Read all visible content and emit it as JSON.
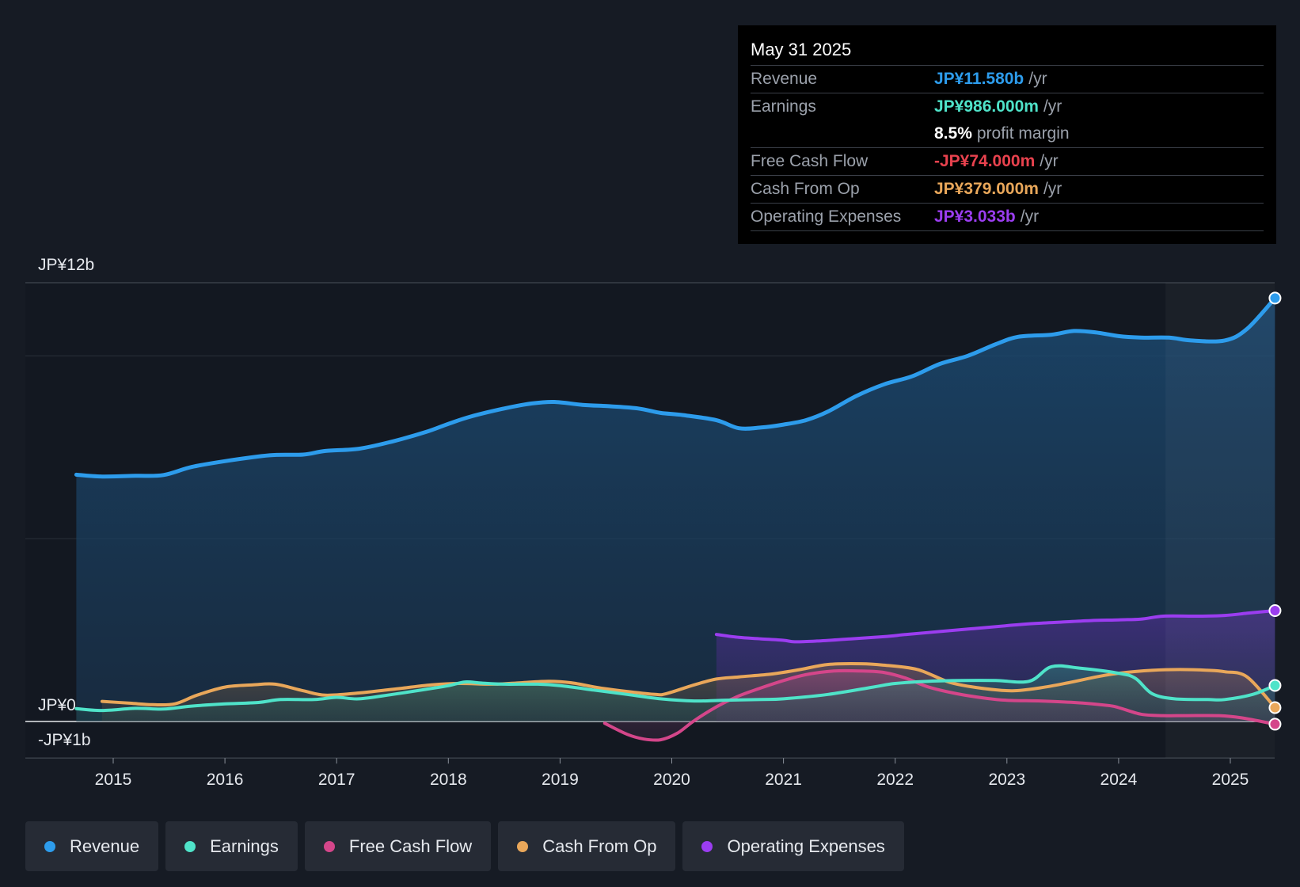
{
  "chart_data": {
    "type": "area",
    "y_unit": "JP¥ billions",
    "ylim": [
      -1,
      12
    ],
    "y_tick_labels": [
      "JP¥12b",
      "JP¥0",
      "-JP¥1b"
    ],
    "x_tick_labels": [
      "2015",
      "2016",
      "2017",
      "2018",
      "2019",
      "2020",
      "2021",
      "2022",
      "2023",
      "2024",
      "2025"
    ],
    "xlim": [
      2014.2,
      2025.4
    ],
    "series": [
      {
        "name": "Revenue",
        "color": "#2d9cec",
        "fill": true,
        "x": [
          2014.67,
          2014.9,
          2015.2,
          2015.45,
          2015.7,
          2016.0,
          2016.4,
          2016.7,
          2016.9,
          2017.2,
          2017.5,
          2017.8,
          2018.0,
          2018.2,
          2018.5,
          2018.75,
          2018.95,
          2019.2,
          2019.45,
          2019.7,
          2019.9,
          2020.1,
          2020.4,
          2020.6,
          2020.8,
          2021.0,
          2021.2,
          2021.4,
          2021.65,
          2021.9,
          2022.15,
          2022.4,
          2022.65,
          2022.9,
          2023.1,
          2023.4,
          2023.6,
          2023.8,
          2024.0,
          2024.2,
          2024.45,
          2024.65,
          2024.95,
          2025.15,
          2025.4
        ],
        "values": [
          6.75,
          6.7,
          6.72,
          6.74,
          6.96,
          7.12,
          7.28,
          7.3,
          7.4,
          7.46,
          7.66,
          7.92,
          8.14,
          8.34,
          8.56,
          8.7,
          8.74,
          8.66,
          8.62,
          8.56,
          8.44,
          8.38,
          8.24,
          8.02,
          8.04,
          8.12,
          8.24,
          8.48,
          8.9,
          9.22,
          9.44,
          9.78,
          10.0,
          10.32,
          10.52,
          10.58,
          10.68,
          10.64,
          10.54,
          10.5,
          10.5,
          10.42,
          10.42,
          10.74,
          11.58
        ]
      },
      {
        "name": "Earnings",
        "color": "#4fe3c9",
        "x": [
          2014.67,
          2014.9,
          2015.2,
          2015.45,
          2015.7,
          2016.0,
          2016.3,
          2016.5,
          2016.8,
          2017.0,
          2017.2,
          2017.5,
          2017.8,
          2018.0,
          2018.15,
          2018.3,
          2018.5,
          2018.8,
          2019.0,
          2019.3,
          2019.6,
          2019.9,
          2020.2,
          2020.45,
          2020.8,
          2021.0,
          2021.4,
          2021.8,
          2022.0,
          2022.3,
          2022.6,
          2022.9,
          2023.2,
          2023.4,
          2023.65,
          2024.0,
          2024.15,
          2024.3,
          2024.5,
          2024.8,
          2024.95,
          2025.2,
          2025.4
        ],
        "values": [
          0.35,
          0.3,
          0.36,
          0.34,
          0.42,
          0.48,
          0.52,
          0.6,
          0.6,
          0.66,
          0.62,
          0.74,
          0.88,
          0.98,
          1.08,
          1.05,
          1.02,
          1.02,
          0.98,
          0.86,
          0.74,
          0.62,
          0.56,
          0.58,
          0.6,
          0.62,
          0.74,
          0.94,
          1.04,
          1.1,
          1.12,
          1.12,
          1.1,
          1.5,
          1.46,
          1.32,
          1.18,
          0.76,
          0.62,
          0.6,
          0.6,
          0.74,
          0.986
        ]
      },
      {
        "name": "Free Cash Flow",
        "color": "#d4468a",
        "x": [
          2019.4,
          2019.6,
          2019.75,
          2019.9,
          2020.05,
          2020.2,
          2020.4,
          2020.6,
          2020.8,
          2021.0,
          2021.2,
          2021.45,
          2021.7,
          2021.9,
          2022.1,
          2022.3,
          2022.55,
          2022.8,
          2023.0,
          2023.3,
          2023.6,
          2023.9,
          2024.0,
          2024.2,
          2024.4,
          2024.6,
          2024.9,
          2025.1,
          2025.4
        ],
        "values": [
          -0.05,
          -0.35,
          -0.48,
          -0.5,
          -0.32,
          0.02,
          0.4,
          0.7,
          0.92,
          1.12,
          1.28,
          1.38,
          1.38,
          1.34,
          1.18,
          0.94,
          0.76,
          0.64,
          0.58,
          0.56,
          0.52,
          0.44,
          0.38,
          0.2,
          0.16,
          0.16,
          0.16,
          0.1,
          -0.074
        ]
      },
      {
        "name": "Cash From Op",
        "color": "#e9a75a",
        "x": [
          2014.9,
          2015.15,
          2015.35,
          2015.55,
          2015.75,
          2016.0,
          2016.25,
          2016.45,
          2016.7,
          2016.9,
          2017.2,
          2017.5,
          2017.85,
          2018.1,
          2018.4,
          2018.65,
          2018.9,
          2019.1,
          2019.35,
          2019.6,
          2019.85,
          2019.95,
          2020.2,
          2020.4,
          2020.6,
          2020.9,
          2021.15,
          2021.4,
          2021.7,
          2021.9,
          2022.2,
          2022.5,
          2022.8,
          2023.05,
          2023.3,
          2023.55,
          2023.8,
          2024.0,
          2024.3,
          2024.55,
          2024.8,
          2024.95,
          2025.15,
          2025.4
        ],
        "values": [
          0.55,
          0.5,
          0.46,
          0.48,
          0.72,
          0.94,
          1.0,
          1.02,
          0.84,
          0.72,
          0.78,
          0.88,
          1.0,
          1.04,
          1.02,
          1.06,
          1.1,
          1.06,
          0.92,
          0.82,
          0.74,
          0.76,
          1.0,
          1.16,
          1.22,
          1.3,
          1.42,
          1.56,
          1.58,
          1.54,
          1.42,
          1.06,
          0.9,
          0.84,
          0.92,
          1.06,
          1.22,
          1.32,
          1.4,
          1.42,
          1.4,
          1.36,
          1.22,
          0.379
        ]
      },
      {
        "name": "Operating Expenses",
        "color": "#9b3df0",
        "fill": true,
        "x": [
          2020.4,
          2020.6,
          2020.8,
          2021.0,
          2021.1,
          2021.3,
          2021.6,
          2021.9,
          2022.1,
          2022.4,
          2022.7,
          2023.0,
          2023.25,
          2023.5,
          2023.75,
          2024.0,
          2024.2,
          2024.4,
          2024.7,
          2024.95,
          2025.15,
          2025.4
        ],
        "values": [
          2.38,
          2.3,
          2.26,
          2.22,
          2.18,
          2.2,
          2.26,
          2.32,
          2.38,
          2.46,
          2.54,
          2.62,
          2.68,
          2.72,
          2.76,
          2.78,
          2.8,
          2.88,
          2.88,
          2.9,
          2.96,
          3.033
        ]
      }
    ],
    "forecast_shading_start": 2024.42,
    "tooltip": {
      "date": "May 31 2025",
      "rows": [
        {
          "label": "Revenue",
          "value": "JP¥11.580b",
          "unit": "/yr",
          "color": "#2d9cec"
        },
        {
          "label": "Earnings",
          "value": "JP¥986.000m",
          "unit": "/yr",
          "color": "#4fe3c9"
        },
        {
          "label": "",
          "value": "8.5%",
          "unit": "profit margin",
          "color": "#ffffff"
        },
        {
          "label": "Free Cash Flow",
          "value": "-JP¥74.000m",
          "unit": "/yr",
          "color": "#e8424e"
        },
        {
          "label": "Cash From Op",
          "value": "JP¥379.000m",
          "unit": "/yr",
          "color": "#e9a75a"
        },
        {
          "label": "Operating Expenses",
          "value": "JP¥3.033b",
          "unit": "/yr",
          "color": "#9b3df0"
        }
      ]
    },
    "legend": [
      {
        "label": "Revenue",
        "color": "#2d9cec"
      },
      {
        "label": "Earnings",
        "color": "#4fe3c9"
      },
      {
        "label": "Free Cash Flow",
        "color": "#d4468a"
      },
      {
        "label": "Cash From Op",
        "color": "#e9a75a"
      },
      {
        "label": "Operating Expenses",
        "color": "#9b3df0"
      }
    ]
  }
}
